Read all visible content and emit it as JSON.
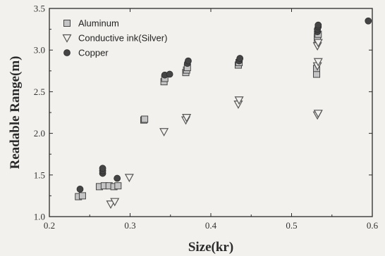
{
  "chart_data": {
    "type": "scatter",
    "title": "",
    "xlabel": "Size(kr)",
    "ylabel": "Readable Range(m)",
    "xlim": [
      0.2,
      0.6
    ],
    "ylim": [
      1.0,
      3.5
    ],
    "xticks": [
      0.2,
      0.3,
      0.4,
      0.5,
      0.6
    ],
    "xtick_labels": [
      "0.2",
      "0.3",
      "0.4",
      "0.5",
      "0.6"
    ],
    "yticks": [
      1.0,
      1.5,
      2.0,
      2.5,
      3.0,
      3.5
    ],
    "ytick_labels": [
      "1.0",
      "1.5",
      "2.0",
      "2.5",
      "3.0",
      "3.5"
    ],
    "grid": false,
    "legend_position": "top-left",
    "series": [
      {
        "name": "Aluminum",
        "marker": "square",
        "color": "#9a9a9a",
        "points": [
          [
            0.236,
            1.24
          ],
          [
            0.241,
            1.25
          ],
          [
            0.262,
            1.36
          ],
          [
            0.268,
            1.37
          ],
          [
            0.274,
            1.37
          ],
          [
            0.28,
            1.36
          ],
          [
            0.285,
            1.37
          ],
          [
            0.317,
            2.16
          ],
          [
            0.318,
            2.17
          ],
          [
            0.342,
            2.62
          ],
          [
            0.343,
            2.66
          ],
          [
            0.369,
            2.73
          ],
          [
            0.37,
            2.76
          ],
          [
            0.371,
            2.79
          ],
          [
            0.434,
            2.82
          ],
          [
            0.435,
            2.85
          ],
          [
            0.531,
            2.71
          ],
          [
            0.531,
            2.78
          ],
          [
            0.532,
            3.13
          ],
          [
            0.532,
            3.16
          ],
          [
            0.533,
            3.19
          ]
        ]
      },
      {
        "name": "Conductive ink(Silver)",
        "marker": "triangle-down",
        "color": "#555555",
        "points": [
          [
            0.276,
            1.15
          ],
          [
            0.281,
            1.18
          ],
          [
            0.299,
            1.47
          ],
          [
            0.342,
            2.02
          ],
          [
            0.369,
            2.16
          ],
          [
            0.37,
            2.19
          ],
          [
            0.434,
            2.35
          ],
          [
            0.435,
            2.4
          ],
          [
            0.532,
            2.22
          ],
          [
            0.533,
            2.24
          ],
          [
            0.532,
            2.81
          ],
          [
            0.533,
            2.86
          ],
          [
            0.532,
            3.05
          ],
          [
            0.533,
            3.09
          ]
        ]
      },
      {
        "name": "Copper",
        "marker": "circle",
        "color": "#454545",
        "points": [
          [
            0.238,
            1.33
          ],
          [
            0.266,
            1.52
          ],
          [
            0.266,
            1.55
          ],
          [
            0.266,
            1.58
          ],
          [
            0.284,
            1.46
          ],
          [
            0.343,
            2.7
          ],
          [
            0.349,
            2.71
          ],
          [
            0.371,
            2.84
          ],
          [
            0.372,
            2.87
          ],
          [
            0.435,
            2.87
          ],
          [
            0.436,
            2.9
          ],
          [
            0.532,
            3.22
          ],
          [
            0.532,
            3.25
          ],
          [
            0.533,
            3.28
          ],
          [
            0.533,
            3.3
          ],
          [
            0.595,
            3.35
          ]
        ]
      }
    ]
  }
}
